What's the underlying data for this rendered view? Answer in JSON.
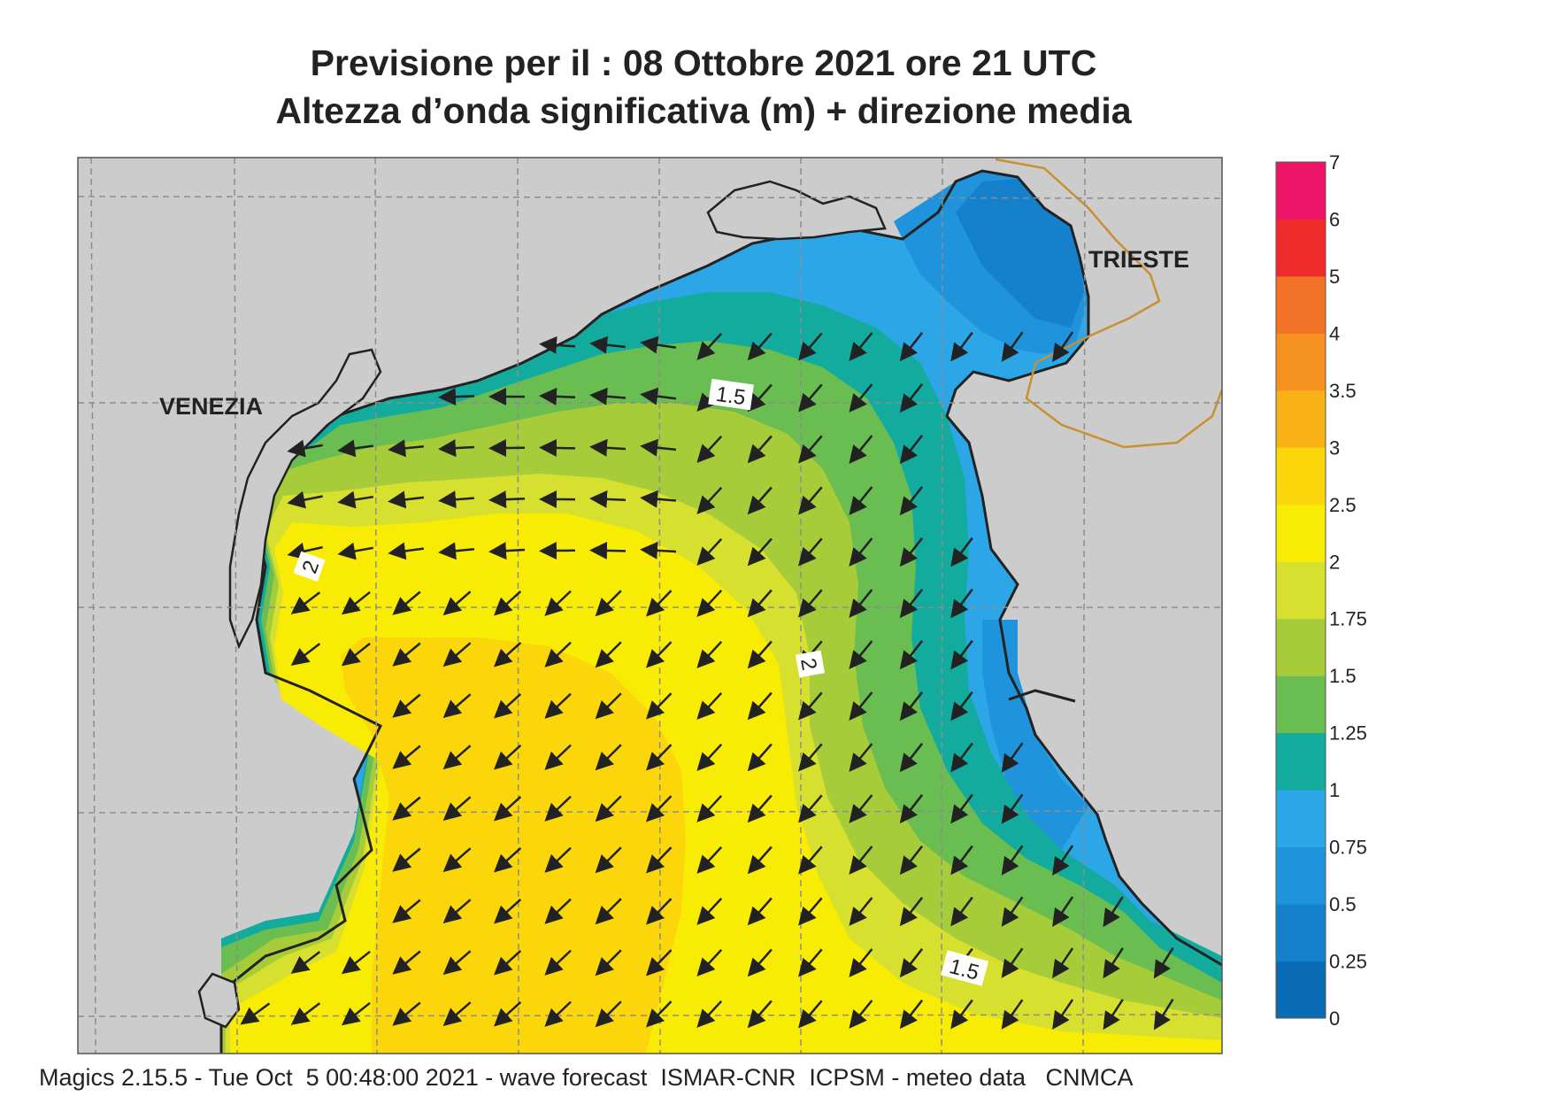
{
  "header": {
    "title_line1": "Previsione per il  :  08  Ottobre  2021   ore 21 UTC",
    "title_line2": "Altezza d’onda significativa (m) + direzione media"
  },
  "map": {
    "cities": [
      {
        "name": "VENEZIA"
      },
      {
        "name": "TRIESTE"
      }
    ],
    "contour_labels": [
      "1.5",
      "2",
      "2",
      "1.5"
    ],
    "land_color": "#cccccc",
    "coastline_color": "#222222",
    "border_color": "#c8902e",
    "grid": "dashed"
  },
  "colorbar": {
    "tick_labels": [
      "7",
      "6",
      "5",
      "4",
      "3.5",
      "3",
      "2.5",
      "2",
      "1.75",
      "1.5",
      "1.25",
      "1",
      "0.75",
      "0.5",
      "0.25",
      "0"
    ],
    "colors_bottom_to_top": [
      "#0a6bb5",
      "#1580cc",
      "#1f93dc",
      "#2ca6e6",
      "#13ab9e",
      "#6abd50",
      "#a7cc3a",
      "#d7e02e",
      "#f8ec05",
      "#fbd60a",
      "#f9b215",
      "#f69220",
      "#f27328",
      "#ef2a2a",
      "#ee1467"
    ]
  },
  "footer": {
    "text": "Magics 2.15.5 - Tue Oct  5 00:48:00 2021 - wave forecast  ISMAR-CNR  ICPSM - meteo data   CNMCA"
  }
}
